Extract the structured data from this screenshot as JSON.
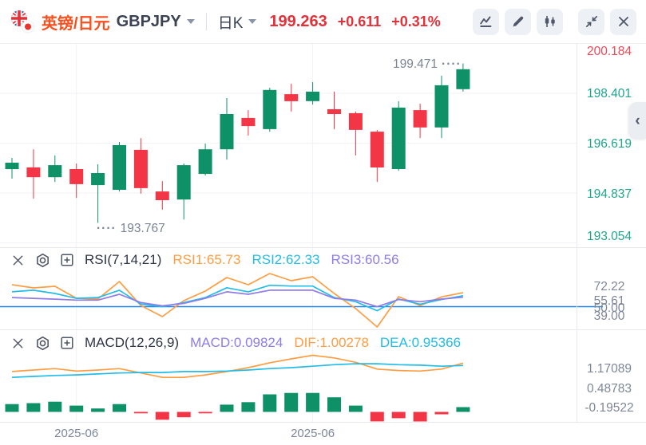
{
  "header": {
    "pair_name": "英镑/日元",
    "symbol": "GBPJPY",
    "interval": "日K",
    "price": "199.263",
    "change": "+0.611",
    "change_pct": "+0.31%",
    "toolbar_icons": [
      "indicator-line",
      "draw-pencil",
      "candle-style",
      "collapse",
      "close"
    ]
  },
  "side_tab": {
    "chevron": "‹"
  },
  "colors": {
    "title_orange": "#fb4e1d",
    "text_dark": "#3a4254",
    "header_red": "#e23139",
    "up": "#0f9168",
    "down": "#f23645",
    "axis_green": "#1fa58d",
    "axis_red": "#ef4856",
    "orange": "#ff9d42",
    "cyan": "#22bce6",
    "purple": "#8f7ce8",
    "baseline_blue": "#2586e7",
    "axis_gray": "#7d8799",
    "annotation_gray": "#7b8494",
    "grid": "#f0f2f5",
    "divider": "#e7e9ee",
    "icon_gray": "#4f5768"
  },
  "chart_data": [
    {
      "type": "candlestick",
      "title": "GBPJPY daily candles",
      "price_axis_labels": [
        {
          "text": "200.184",
          "color": "axis_red"
        },
        {
          "text": "198.401",
          "color": "axis_green"
        },
        {
          "text": "196.619",
          "color": "axis_green"
        },
        {
          "text": "194.837",
          "color": "axis_green"
        },
        {
          "text": "193.054",
          "color": "axis_green"
        }
      ],
      "ylim": [
        192.9,
        200.17
      ],
      "grid_prices": [
        198.401,
        196.619,
        194.837,
        193.054
      ],
      "x_axis_labels": [
        {
          "text": "2025-06",
          "bar_index": 3
        },
        {
          "text": "2025-06",
          "bar_index": 14
        }
      ],
      "annotations": [
        {
          "text": "199.471",
          "leader": "····",
          "bar_index": 21,
          "anchor": "high"
        },
        {
          "text": "193.767",
          "leader": "····",
          "bar_index": 4,
          "anchor": "low"
        }
      ],
      "candles": [
        {
          "o": 195.69,
          "h": 196.09,
          "l": 195.35,
          "c": 195.92
        },
        {
          "o": 195.75,
          "h": 196.4,
          "l": 194.63,
          "c": 195.4
        },
        {
          "o": 195.4,
          "h": 196.18,
          "l": 195.23,
          "c": 195.83
        },
        {
          "o": 195.69,
          "h": 195.89,
          "l": 194.66,
          "c": 195.15
        },
        {
          "o": 195.12,
          "h": 195.86,
          "l": 193.767,
          "c": 195.55
        },
        {
          "o": 194.95,
          "h": 196.66,
          "l": 194.89,
          "c": 196.55
        },
        {
          "o": 196.38,
          "h": 196.8,
          "l": 194.81,
          "c": 195.01
        },
        {
          "o": 194.89,
          "h": 195.26,
          "l": 194.24,
          "c": 194.58
        },
        {
          "o": 194.6,
          "h": 195.89,
          "l": 193.89,
          "c": 195.83
        },
        {
          "o": 195.52,
          "h": 196.6,
          "l": 195.46,
          "c": 196.4
        },
        {
          "o": 196.4,
          "h": 198.23,
          "l": 196.03,
          "c": 197.66
        },
        {
          "o": 197.52,
          "h": 197.8,
          "l": 196.89,
          "c": 197.23
        },
        {
          "o": 197.12,
          "h": 198.6,
          "l": 197.03,
          "c": 198.52
        },
        {
          "o": 198.37,
          "h": 198.74,
          "l": 197.75,
          "c": 198.12
        },
        {
          "o": 198.12,
          "h": 198.8,
          "l": 198.0,
          "c": 198.46
        },
        {
          "o": 197.83,
          "h": 198.46,
          "l": 197.12,
          "c": 197.66
        },
        {
          "o": 197.69,
          "h": 197.75,
          "l": 196.18,
          "c": 197.09
        },
        {
          "o": 197.03,
          "h": 197.09,
          "l": 195.23,
          "c": 195.75
        },
        {
          "o": 195.69,
          "h": 198.12,
          "l": 195.63,
          "c": 197.89
        },
        {
          "o": 197.8,
          "h": 198.03,
          "l": 196.8,
          "c": 197.18
        },
        {
          "o": 197.18,
          "h": 199.03,
          "l": 196.8,
          "c": 198.69
        },
        {
          "o": 198.55,
          "h": 199.471,
          "l": 198.46,
          "c": 199.263
        }
      ]
    },
    {
      "type": "line",
      "indicator": "RSI",
      "title": "RSI(7,14,21)",
      "readouts": [
        {
          "text": "RSI1:65.73",
          "color": "orange"
        },
        {
          "text": "RSI2:62.33",
          "color": "cyan"
        },
        {
          "text": "RSI3:60.56",
          "color": "purple"
        }
      ],
      "axis_labels": [
        "72.22",
        "55.61",
        "50.00",
        "39.00"
      ],
      "baseline_value": 50,
      "series": [
        {
          "name": "RSI1",
          "color": "orange",
          "values": [
            74.7,
            71.1,
            72.9,
            59.4,
            58.5,
            78.3,
            51.3,
            38.8,
            56.7,
            67.5,
            82.8,
            74.7,
            87.3,
            79.2,
            83.7,
            64.8,
            47.8,
            27.1,
            61.2,
            51.3,
            61.0,
            65.73
          ]
        },
        {
          "name": "RSI2",
          "color": "cyan",
          "values": [
            66.7,
            68.5,
            64.8,
            59.3,
            60.2,
            68.5,
            52.8,
            50.0,
            54.6,
            60.2,
            71.3,
            66.7,
            74.1,
            73.2,
            73.2,
            60.2,
            55.6,
            45.4,
            58.5,
            52.8,
            58.0,
            62.33
          ]
        },
        {
          "name": "RSI3",
          "color": "purple",
          "values": [
            60.2,
            59.3,
            58.4,
            57.4,
            57.4,
            63.9,
            54.6,
            50.9,
            53.7,
            59.3,
            66.7,
            63.9,
            68.5,
            68.5,
            68.5,
            59.3,
            57.4,
            50.0,
            58.0,
            55.6,
            58.5,
            60.56
          ]
        }
      ]
    },
    {
      "type": "mixed",
      "indicator": "MACD",
      "title": "MACD(12,26,9)",
      "readouts": [
        {
          "text": "MACD:0.09824",
          "color": "purple"
        },
        {
          "text": "DIF:1.00278",
          "color": "orange"
        },
        {
          "text": "DEA:0.95366",
          "color": "cyan"
        }
      ],
      "axis_labels": [
        "1.17089",
        "0.48783",
        "-0.19522"
      ],
      "histogram": [
        0.16,
        0.18,
        0.21,
        0.13,
        0.07,
        0.16,
        -0.03,
        -0.16,
        -0.11,
        -0.03,
        0.15,
        0.2,
        0.36,
        0.39,
        0.39,
        0.3,
        0.13,
        -0.195,
        -0.13,
        -0.197,
        -0.05,
        0.09824
      ],
      "series": [
        {
          "name": "DIF",
          "color": "orange",
          "values": [
            0.83,
            0.86,
            0.89,
            0.84,
            0.86,
            0.89,
            0.8,
            0.71,
            0.71,
            0.76,
            0.83,
            0.91,
            1.01,
            1.09,
            1.164,
            1.11,
            1.02,
            0.88,
            0.85,
            0.84,
            0.88,
            1.00278
          ]
        },
        {
          "name": "DEA",
          "color": "cyan",
          "values": [
            0.71,
            0.73,
            0.75,
            0.76,
            0.78,
            0.8,
            0.81,
            0.81,
            0.83,
            0.83,
            0.84,
            0.86,
            0.89,
            0.91,
            0.94,
            0.97,
            0.99,
            0.99,
            0.97,
            0.96,
            0.94,
            0.95366
          ]
        }
      ]
    }
  ]
}
